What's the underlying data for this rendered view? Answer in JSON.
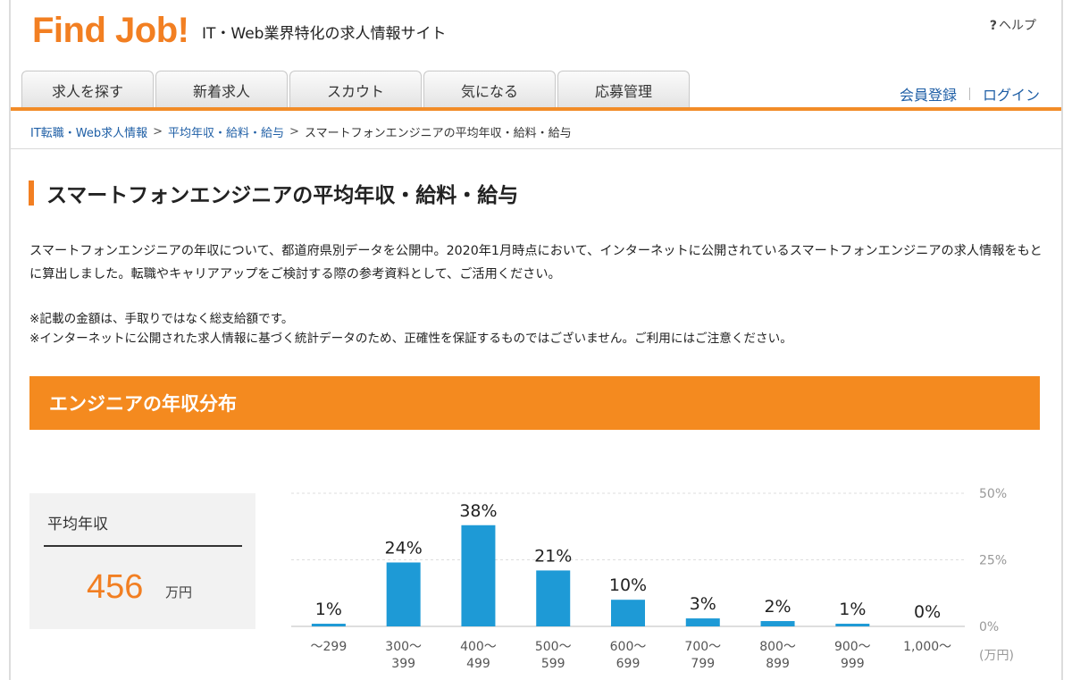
{
  "header": {
    "logo": "Find Job!",
    "tagline": "IT・Web業界特化の求人情報サイト",
    "help_label": "ヘルプ"
  },
  "nav": {
    "tabs": [
      "求人を探す",
      "新着求人",
      "スカウト",
      "気になる",
      "応募管理"
    ],
    "register": "会員登録",
    "login": "ログイン"
  },
  "breadcrumb": {
    "items": [
      "IT転職・Web求人情報",
      "平均年収・給料・給与",
      "スマートフォンエンジニアの平均年収・給料・給与"
    ]
  },
  "page": {
    "title": "スマートフォンエンジニアの平均年収・給料・給与",
    "description": "スマートフォンエンジニアの年収について、都道府県別データを公開中。2020年1月時点において、インターネットに公開されているスマートフォンエンジニアの求人情報をもとに算出しました。転職やキャリアアップをご検討する際の参考資料として、ご活用ください。",
    "notes": [
      "※記載の金額は、手取りではなく総支給額です。",
      "※インターネットに公開された求人情報に基づく統計データのため、正確性を保証するものではございません。ご利用にはご注意ください。"
    ]
  },
  "section": {
    "heading": "エンジニアの年収分布"
  },
  "average": {
    "label": "平均年収",
    "value": "456",
    "unit": "万円"
  },
  "colors": {
    "accent": "#f27f22",
    "bar": "#1e9ad6",
    "link": "#1f5fa6"
  },
  "chart_data": {
    "type": "bar",
    "categories": [
      [
        "〜299"
      ],
      [
        "300〜",
        "399"
      ],
      [
        "400〜",
        "499"
      ],
      [
        "500〜",
        "599"
      ],
      [
        "600〜",
        "699"
      ],
      [
        "700〜",
        "799"
      ],
      [
        "800〜",
        "899"
      ],
      [
        "900〜",
        "999"
      ],
      [
        "1,000〜"
      ]
    ],
    "values": [
      1,
      24,
      38,
      21,
      10,
      3,
      2,
      1,
      0
    ],
    "value_labels": [
      "1%",
      "24%",
      "38%",
      "21%",
      "10%",
      "3%",
      "2%",
      "1%",
      "0%"
    ],
    "ylim": [
      0,
      50
    ],
    "yticks": [
      "0%",
      "25%",
      "50%"
    ],
    "x_unit": "(万円)",
    "grid": true
  }
}
